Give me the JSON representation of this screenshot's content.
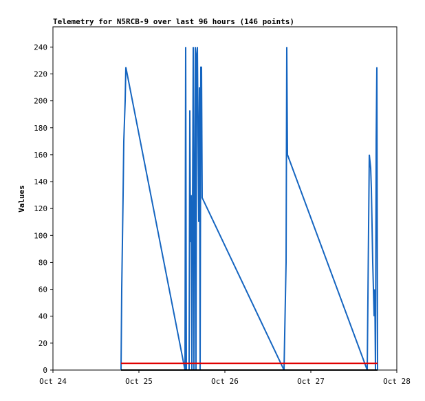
{
  "chart_data": {
    "type": "line",
    "title": "Telemetry for N5RCB-9 over last 96 hours (146 points)",
    "ylabel": "Values",
    "xlim": [
      0,
      4
    ],
    "xticks": [
      {
        "value": 0,
        "label": "Oct 24"
      },
      {
        "value": 1,
        "label": "Oct 25"
      },
      {
        "value": 2,
        "label": "Oct 26"
      },
      {
        "value": 3,
        "label": "Oct 27"
      },
      {
        "value": 4,
        "label": "Oct 28"
      }
    ],
    "ylim": [
      0,
      255
    ],
    "yticks": [
      0,
      20,
      40,
      60,
      80,
      100,
      120,
      140,
      160,
      180,
      200,
      220,
      240
    ],
    "series": [
      {
        "color": "#000000",
        "x": [
          0.792,
          3.776
        ],
        "values": [
          0,
          0
        ]
      },
      {
        "color": "#e00000",
        "x": [
          0.792,
          3.776
        ],
        "values": [
          5,
          5
        ]
      },
      {
        "color": "#1565c0",
        "x": [
          0.792,
          0.8,
          0.816,
          0.824,
          0.84,
          0.848,
          1.536,
          1.544,
          1.552,
          1.584,
          1.592,
          1.6,
          1.608,
          1.616,
          1.632,
          1.64,
          1.656,
          1.664,
          1.672,
          1.68,
          1.688,
          1.696,
          1.704,
          1.712,
          1.72,
          1.728,
          1.736,
          2.688,
          2.712,
          2.72,
          2.728,
          3.656,
          3.68,
          3.696,
          3.704,
          3.72,
          3.736,
          3.744,
          3.752,
          3.76,
          3.768,
          3.776
        ],
        "values": [
          0,
          60,
          130,
          170,
          200,
          225,
          0,
          240,
          0,
          0,
          193,
          95,
          130,
          0,
          240,
          0,
          240,
          0,
          235,
          240,
          175,
          110,
          210,
          0,
          225,
          225,
          128,
          0,
          80,
          240,
          160,
          0,
          160,
          150,
          135,
          80,
          40,
          60,
          0,
          170,
          225,
          0
        ]
      }
    ]
  }
}
